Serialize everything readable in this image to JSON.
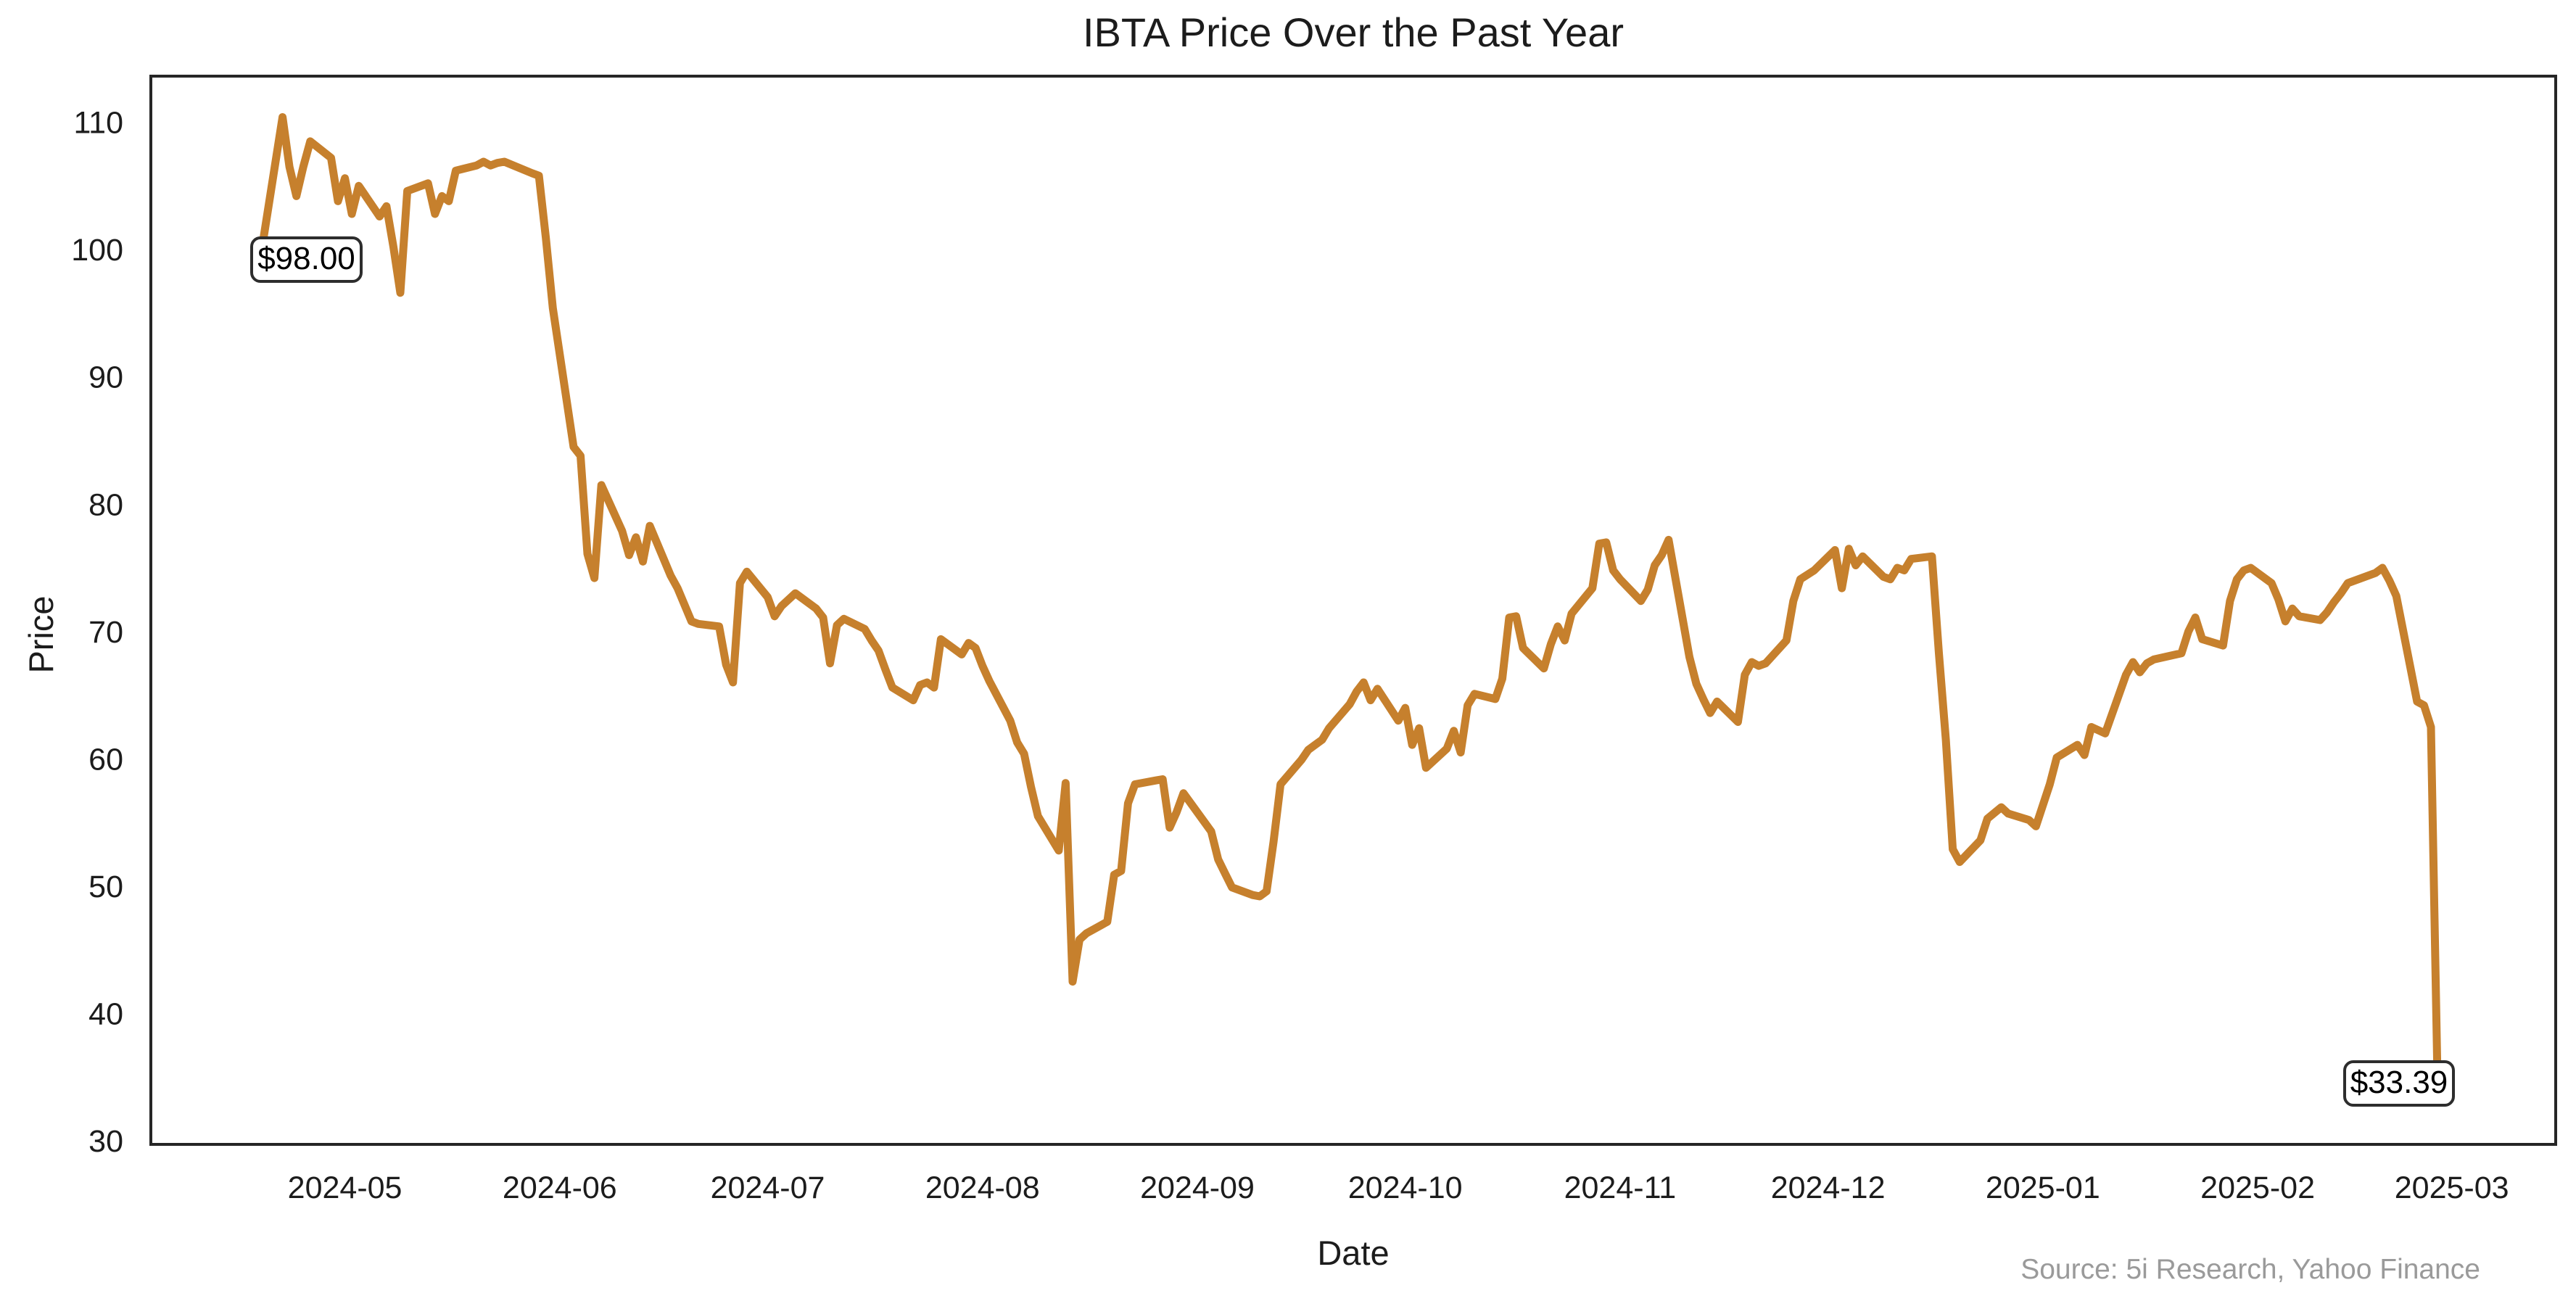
{
  "chart_data": {
    "type": "line",
    "title": "IBTA Price Over the Past Year",
    "xlabel": "Date",
    "ylabel": "Price",
    "source": "Source: 5i Research, Yahoo Finance",
    "grid": false,
    "legend": null,
    "line_color": "#C6802D",
    "line_width": 11,
    "spine_color": "#262626",
    "tick_label_color": "#1c1c1c",
    "ylim": [
      29.72,
      113.62
    ],
    "xlim": [
      "2024-04-03",
      "2025-03-16"
    ],
    "y_ticks": [
      30,
      40,
      50,
      60,
      70,
      80,
      90,
      100,
      110
    ],
    "x_ticks": [
      {
        "date": "2024-05-01",
        "label": "2024-05"
      },
      {
        "date": "2024-06-01",
        "label": "2024-06"
      },
      {
        "date": "2024-07-01",
        "label": "2024-07"
      },
      {
        "date": "2024-08-01",
        "label": "2024-08"
      },
      {
        "date": "2024-09-01",
        "label": "2024-09"
      },
      {
        "date": "2024-10-01",
        "label": "2024-10"
      },
      {
        "date": "2024-11-01",
        "label": "2024-11"
      },
      {
        "date": "2024-12-01",
        "label": "2024-12"
      },
      {
        "date": "2025-01-01",
        "label": "2025-01"
      },
      {
        "date": "2025-02-01",
        "label": "2025-02"
      },
      {
        "date": "2025-03-01",
        "label": "2025-03"
      }
    ],
    "annotations": [
      {
        "label": "$98.00",
        "date": "2024-04-18",
        "price": 98.0
      },
      {
        "label": "$33.39",
        "date": "2025-02-27",
        "price": 33.39
      }
    ],
    "series": [
      {
        "name": "IBTA",
        "points": [
          [
            "2024-04-18",
            98.0
          ],
          [
            "2024-04-19",
            100.0
          ],
          [
            "2024-04-22",
            110.4
          ],
          [
            "2024-04-23",
            106.5
          ],
          [
            "2024-04-24",
            104.2
          ],
          [
            "2024-04-25",
            106.5
          ],
          [
            "2024-04-26",
            108.5
          ],
          [
            "2024-04-29",
            107.2
          ],
          [
            "2024-04-30",
            103.8
          ],
          [
            "2024-05-01",
            105.6
          ],
          [
            "2024-05-02",
            102.8
          ],
          [
            "2024-05-03",
            105.0
          ],
          [
            "2024-05-06",
            102.6
          ],
          [
            "2024-05-07",
            103.4
          ],
          [
            "2024-05-08",
            100.2
          ],
          [
            "2024-05-09",
            96.6
          ],
          [
            "2024-05-10",
            104.6
          ],
          [
            "2024-05-13",
            105.2
          ],
          [
            "2024-05-14",
            102.8
          ],
          [
            "2024-05-15",
            104.2
          ],
          [
            "2024-05-16",
            103.8
          ],
          [
            "2024-05-17",
            106.2
          ],
          [
            "2024-05-20",
            106.6
          ],
          [
            "2024-05-21",
            106.9
          ],
          [
            "2024-05-22",
            106.6
          ],
          [
            "2024-05-23",
            106.8
          ],
          [
            "2024-05-24",
            106.9
          ],
          [
            "2024-05-28",
            106.0
          ],
          [
            "2024-05-29",
            105.8
          ],
          [
            "2024-05-30",
            100.9
          ],
          [
            "2024-05-31",
            95.4
          ],
          [
            "2024-06-03",
            84.5
          ],
          [
            "2024-06-04",
            83.8
          ],
          [
            "2024-06-05",
            76.1
          ],
          [
            "2024-06-06",
            74.2
          ],
          [
            "2024-06-07",
            81.5
          ],
          [
            "2024-06-10",
            77.9
          ],
          [
            "2024-06-11",
            76.0
          ],
          [
            "2024-06-12",
            77.4
          ],
          [
            "2024-06-13",
            75.5
          ],
          [
            "2024-06-14",
            78.3
          ],
          [
            "2024-06-17",
            74.4
          ],
          [
            "2024-06-18",
            73.4
          ],
          [
            "2024-06-20",
            70.8
          ],
          [
            "2024-06-21",
            70.6
          ],
          [
            "2024-06-24",
            70.4
          ],
          [
            "2024-06-25",
            67.4
          ],
          [
            "2024-06-26",
            66.0
          ],
          [
            "2024-06-27",
            73.8
          ],
          [
            "2024-06-28",
            74.7
          ],
          [
            "2024-07-01",
            72.7
          ],
          [
            "2024-07-02",
            71.2
          ],
          [
            "2024-07-03",
            72.0
          ],
          [
            "2024-07-05",
            73.0
          ],
          [
            "2024-07-08",
            71.8
          ],
          [
            "2024-07-09",
            71.1
          ],
          [
            "2024-07-10",
            67.5
          ],
          [
            "2024-07-11",
            70.5
          ],
          [
            "2024-07-12",
            71.0
          ],
          [
            "2024-07-15",
            70.2
          ],
          [
            "2024-07-16",
            69.3
          ],
          [
            "2024-07-17",
            68.5
          ],
          [
            "2024-07-18",
            67.0
          ],
          [
            "2024-07-19",
            65.6
          ],
          [
            "2024-07-22",
            64.6
          ],
          [
            "2024-07-23",
            65.8
          ],
          [
            "2024-07-24",
            66.0
          ],
          [
            "2024-07-25",
            65.6
          ],
          [
            "2024-07-26",
            69.4
          ],
          [
            "2024-07-29",
            68.2
          ],
          [
            "2024-07-30",
            69.1
          ],
          [
            "2024-07-31",
            68.7
          ],
          [
            "2024-08-01",
            67.3
          ],
          [
            "2024-08-02",
            66.1
          ],
          [
            "2024-08-05",
            63.0
          ],
          [
            "2024-08-06",
            61.3
          ],
          [
            "2024-08-07",
            60.4
          ],
          [
            "2024-08-08",
            57.8
          ],
          [
            "2024-08-09",
            55.5
          ],
          [
            "2024-08-12",
            52.8
          ],
          [
            "2024-08-13",
            58.1
          ],
          [
            "2024-08-14",
            42.5
          ],
          [
            "2024-08-15",
            45.8
          ],
          [
            "2024-08-16",
            46.3
          ],
          [
            "2024-08-19",
            47.2
          ],
          [
            "2024-08-20",
            50.9
          ],
          [
            "2024-08-21",
            51.2
          ],
          [
            "2024-08-22",
            56.5
          ],
          [
            "2024-08-23",
            58.0
          ],
          [
            "2024-08-26",
            58.3
          ],
          [
            "2024-08-27",
            58.4
          ],
          [
            "2024-08-28",
            54.6
          ],
          [
            "2024-08-29",
            55.8
          ],
          [
            "2024-08-30",
            57.3
          ],
          [
            "2024-09-03",
            54.3
          ],
          [
            "2024-09-04",
            52.1
          ],
          [
            "2024-09-05",
            51.0
          ],
          [
            "2024-09-06",
            49.9
          ],
          [
            "2024-09-09",
            49.3
          ],
          [
            "2024-09-10",
            49.2
          ],
          [
            "2024-09-11",
            49.6
          ],
          [
            "2024-09-12",
            53.5
          ],
          [
            "2024-09-13",
            58.0
          ],
          [
            "2024-09-16",
            59.9
          ],
          [
            "2024-09-17",
            60.7
          ],
          [
            "2024-09-18",
            61.1
          ],
          [
            "2024-09-19",
            61.5
          ],
          [
            "2024-09-20",
            62.4
          ],
          [
            "2024-09-23",
            64.3
          ],
          [
            "2024-09-24",
            65.3
          ],
          [
            "2024-09-25",
            66.0
          ],
          [
            "2024-09-26",
            64.6
          ],
          [
            "2024-09-27",
            65.5
          ],
          [
            "2024-09-30",
            63.0
          ],
          [
            "2024-10-01",
            64.0
          ],
          [
            "2024-10-02",
            61.1
          ],
          [
            "2024-10-03",
            62.4
          ],
          [
            "2024-10-04",
            59.3
          ],
          [
            "2024-10-07",
            60.8
          ],
          [
            "2024-10-08",
            62.2
          ],
          [
            "2024-10-09",
            60.5
          ],
          [
            "2024-10-10",
            64.2
          ],
          [
            "2024-10-11",
            65.1
          ],
          [
            "2024-10-14",
            64.7
          ],
          [
            "2024-10-15",
            66.3
          ],
          [
            "2024-10-16",
            71.1
          ],
          [
            "2024-10-17",
            71.2
          ],
          [
            "2024-10-18",
            68.7
          ],
          [
            "2024-10-21",
            67.1
          ],
          [
            "2024-10-22",
            69.0
          ],
          [
            "2024-10-23",
            70.4
          ],
          [
            "2024-10-24",
            69.3
          ],
          [
            "2024-10-25",
            71.4
          ],
          [
            "2024-10-28",
            73.4
          ],
          [
            "2024-10-29",
            76.9
          ],
          [
            "2024-10-30",
            77.0
          ],
          [
            "2024-10-31",
            74.8
          ],
          [
            "2024-11-01",
            74.1
          ],
          [
            "2024-11-04",
            72.4
          ],
          [
            "2024-11-05",
            73.3
          ],
          [
            "2024-11-06",
            75.2
          ],
          [
            "2024-11-07",
            76.0
          ],
          [
            "2024-11-08",
            77.2
          ],
          [
            "2024-11-11",
            68.0
          ],
          [
            "2024-11-12",
            65.9
          ],
          [
            "2024-11-13",
            64.7
          ],
          [
            "2024-11-14",
            63.6
          ],
          [
            "2024-11-15",
            64.5
          ],
          [
            "2024-11-18",
            62.9
          ],
          [
            "2024-11-19",
            66.6
          ],
          [
            "2024-11-20",
            67.6
          ],
          [
            "2024-11-21",
            67.3
          ],
          [
            "2024-11-22",
            67.5
          ],
          [
            "2024-11-25",
            69.3
          ],
          [
            "2024-11-26",
            72.4
          ],
          [
            "2024-11-27",
            74.1
          ],
          [
            "2024-11-29",
            74.8
          ],
          [
            "2024-12-02",
            76.4
          ],
          [
            "2024-12-03",
            73.4
          ],
          [
            "2024-12-04",
            76.5
          ],
          [
            "2024-12-05",
            75.2
          ],
          [
            "2024-12-06",
            75.9
          ],
          [
            "2024-12-09",
            74.3
          ],
          [
            "2024-12-10",
            74.1
          ],
          [
            "2024-12-11",
            75.0
          ],
          [
            "2024-12-12",
            74.8
          ],
          [
            "2024-12-13",
            75.7
          ],
          [
            "2024-12-16",
            75.9
          ],
          [
            "2024-12-17",
            68.3
          ],
          [
            "2024-12-18",
            61.5
          ],
          [
            "2024-12-19",
            52.9
          ],
          [
            "2024-12-20",
            51.9
          ],
          [
            "2024-12-23",
            53.6
          ],
          [
            "2024-12-24",
            55.3
          ],
          [
            "2024-12-26",
            56.2
          ],
          [
            "2024-12-27",
            55.7
          ],
          [
            "2024-12-30",
            55.2
          ],
          [
            "2024-12-31",
            54.7
          ],
          [
            "2025-01-02",
            58.0
          ],
          [
            "2025-01-03",
            60.1
          ],
          [
            "2025-01-06",
            61.1
          ],
          [
            "2025-01-07",
            60.3
          ],
          [
            "2025-01-08",
            62.5
          ],
          [
            "2025-01-10",
            62.0
          ],
          [
            "2025-01-13",
            66.6
          ],
          [
            "2025-01-14",
            67.6
          ],
          [
            "2025-01-15",
            66.8
          ],
          [
            "2025-01-16",
            67.5
          ],
          [
            "2025-01-17",
            67.8
          ],
          [
            "2025-01-21",
            68.3
          ],
          [
            "2025-01-22",
            70.0
          ],
          [
            "2025-01-23",
            71.1
          ],
          [
            "2025-01-24",
            69.4
          ],
          [
            "2025-01-27",
            68.9
          ],
          [
            "2025-01-28",
            72.4
          ],
          [
            "2025-01-29",
            74.1
          ],
          [
            "2025-01-30",
            74.8
          ],
          [
            "2025-01-31",
            75.0
          ],
          [
            "2025-02-03",
            73.8
          ],
          [
            "2025-02-04",
            72.5
          ],
          [
            "2025-02-05",
            70.8
          ],
          [
            "2025-02-06",
            71.8
          ],
          [
            "2025-02-07",
            71.2
          ],
          [
            "2025-02-10",
            70.9
          ],
          [
            "2025-02-11",
            71.5
          ],
          [
            "2025-02-12",
            72.3
          ],
          [
            "2025-02-13",
            73.0
          ],
          [
            "2025-02-14",
            73.8
          ],
          [
            "2025-02-18",
            74.6
          ],
          [
            "2025-02-19",
            75.0
          ],
          [
            "2025-02-20",
            74.0
          ],
          [
            "2025-02-21",
            72.8
          ],
          [
            "2025-02-24",
            64.5
          ],
          [
            "2025-02-25",
            64.2
          ],
          [
            "2025-02-26",
            62.5
          ],
          [
            "2025-02-27",
            33.39
          ]
        ]
      }
    ]
  }
}
